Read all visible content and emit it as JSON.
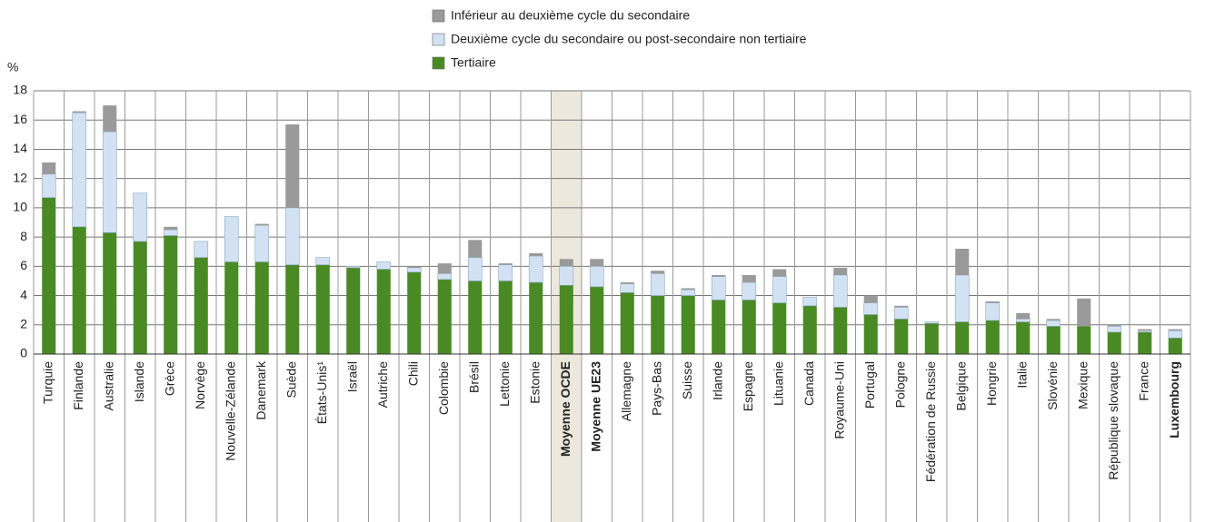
{
  "chart_data": {
    "type": "stacked_bar",
    "y_label": "%",
    "categories": [
      "Turquie",
      "Finlande",
      "Australie",
      "Islande",
      "Grèce",
      "Norvège",
      "Nouvelle-Zélande",
      "Danemark",
      "Suède",
      "États-Unis¹",
      "Israël",
      "Autriche",
      "Chili",
      "Colombie",
      "Brésil",
      "Lettonie",
      "Estonie",
      "Moyenne OCDE",
      "Moyenne UE23",
      "Allemagne",
      "Pays-Bas",
      "Suisse",
      "Irlande",
      "Espagne",
      "Lituanie",
      "Canada",
      "Royaume-Uni",
      "Portugal",
      "Pologne",
      "Fédération de Russie",
      "Belgique",
      "Hongrie",
      "Italie",
      "Slovénie",
      "Mexique",
      "République slovaque",
      "France",
      "Luxembourg"
    ],
    "series": [
      {
        "name": "Tertiaire",
        "color": "#4a8a24",
        "values": [
          10.7,
          8.7,
          8.3,
          7.7,
          8.1,
          6.6,
          6.3,
          6.3,
          6.1,
          6.1,
          5.9,
          5.8,
          5.6,
          5.1,
          5.0,
          5.0,
          4.9,
          4.7,
          4.6,
          4.2,
          4.0,
          4.0,
          3.7,
          3.7,
          3.5,
          3.3,
          3.2,
          2.7,
          2.4,
          2.1,
          2.2,
          2.3,
          2.2,
          1.9,
          1.9,
          1.5,
          1.5,
          1.1
        ]
      },
      {
        "name": "Deuxième cycle du secondaire ou post-secondaire non tertiaire",
        "color": "#d3e2f2",
        "values": [
          1.6,
          7.8,
          6.9,
          3.3,
          0.4,
          1.1,
          3.1,
          2.5,
          3.9,
          0.5,
          0.1,
          0.5,
          0.3,
          0.4,
          1.6,
          1.1,
          1.8,
          1.3,
          1.4,
          0.6,
          1.5,
          0.4,
          1.6,
          1.2,
          1.8,
          0.6,
          2.2,
          0.8,
          0.8,
          0.1,
          3.2,
          1.2,
          0.2,
          0.4,
          0.0,
          0.4,
          0.1,
          0.5
        ]
      },
      {
        "name": "Inférieur au deuxième cycle du secondaire",
        "color": "#9a9a9a",
        "values": [
          0.8,
          0.1,
          1.8,
          0.0,
          0.2,
          0.0,
          0.0,
          0.1,
          5.7,
          0.0,
          0.0,
          0.0,
          0.1,
          0.7,
          1.2,
          0.1,
          0.2,
          0.5,
          0.5,
          0.1,
          0.2,
          0.1,
          0.1,
          0.5,
          0.5,
          0.0,
          0.5,
          0.5,
          0.1,
          0.0,
          1.8,
          0.1,
          0.4,
          0.1,
          1.9,
          0.1,
          0.1,
          0.1
        ]
      }
    ],
    "ylim": [
      0,
      18
    ],
    "yticks": [
      0,
      2,
      4,
      6,
      8,
      10,
      12,
      14,
      16,
      18
    ],
    "grid": true,
    "highlight_category": 17,
    "bold_categories": [
      17,
      18,
      37
    ]
  }
}
